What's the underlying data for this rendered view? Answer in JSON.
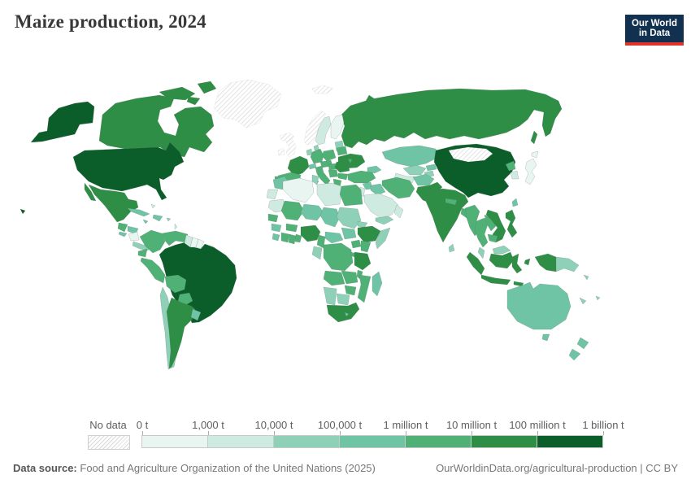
{
  "header": {
    "title": "Maize production, 2024",
    "logo": {
      "line1": "Our World",
      "line2": "in Data",
      "bg_color": "#12304f",
      "accent_color": "#e0342b"
    }
  },
  "legend": {
    "no_data_label": "No data",
    "tick_labels": [
      "0 t",
      "1,000 t",
      "10,000 t",
      "100,000 t",
      "1 million t",
      "10 million t",
      "100 million t",
      "1 billion t"
    ],
    "bin_colors": [
      "#e8f5f1",
      "#cfeae0",
      "#8fd1b8",
      "#6ec4a4",
      "#50b176",
      "#2f8e46",
      "#0b5e2a"
    ],
    "no_data_style": "diagonal-hatch"
  },
  "footer": {
    "source_label": "Data source:",
    "source_text": "Food and Agriculture Organization of the United Nations (2025)",
    "credit_text": "OurWorldinData.org/agricultural-production | CC BY"
  },
  "chart_data": {
    "type": "choropleth",
    "title": "Maize production, 2024",
    "unit": "tonnes",
    "bins": [
      {
        "bin": 1,
        "range": "0 t – 1,000 t",
        "color": "#e8f5f1"
      },
      {
        "bin": 2,
        "range": "1,000 t – 10,000 t",
        "color": "#cfeae0"
      },
      {
        "bin": 3,
        "range": "10,000 t – 100,000 t",
        "color": "#8fd1b8"
      },
      {
        "bin": 4,
        "range": "100,000 t – 1 million t",
        "color": "#6ec4a4"
      },
      {
        "bin": 5,
        "range": "1 million t – 10 million t",
        "color": "#50b176"
      },
      {
        "bin": 6,
        "range": "10 million t – 100 million t",
        "color": "#2f8e46"
      },
      {
        "bin": 7,
        "range": "100 million t – 1 billion t",
        "color": "#0b5e2a"
      }
    ],
    "no_data_regions_note": "0 = no data (hatched)",
    "regions": {
      "greenland": 0,
      "iceland": 0,
      "ireland": 0,
      "united-kingdom": 0,
      "norway": 0,
      "svalbard": 0,
      "mongolia": 0,
      "nicaragua": 1,
      "suriname": 1,
      "french-guiana": 1,
      "algeria": 1,
      "finland": 1,
      "japan": 1,
      "bahamas": 2,
      "lesser-antilles": 2,
      "guyana": 2,
      "sweden": 2,
      "south-korea": 2,
      "israel-jordan": 2,
      "saudi-arabia": 2,
      "libya": 2,
      "mauritania": 2,
      "western-sahara": 2,
      "turkmenistan": 2,
      "oman": 2,
      "costa-rica-panama": 3,
      "puerto-rico": 3,
      "trinidad-and-tobago": 3,
      "chile": 3,
      "baltic-states": 3,
      "denmark": 3,
      "netherlands-belgium": 3,
      "uzbekistan": 3,
      "tajikistan": 3,
      "sri-lanka": 3,
      "malaysia": 3,
      "papua-new-guinea": 3,
      "solomon-islands": 3,
      "fiji": 3,
      "new-caledonia": 3,
      "tunisia": 3,
      "sudan": 3,
      "eritrea": 3,
      "somalia": 3,
      "gabon-congo": 3,
      "botswana": 3,
      "namibia": 3,
      "yemen": 3,
      "el-salvador": 4,
      "honduras": 4,
      "cuba": 4,
      "jamaica": 4,
      "hispaniola": 4,
      "uruguay": 4,
      "switzerland": 4,
      "kazakhstan": 4,
      "kyrgyzstan": 4,
      "caucasus": 4,
      "syria": 4,
      "iraq": 4,
      "afghanistan": 4,
      "taiwan": 4,
      "morocco": 4,
      "niger": 4,
      "chad": 4,
      "guinea": 4,
      "sierra-leone-liberia": 4,
      "central-african-republic": 4,
      "south-sudan": 4,
      "lesotho": 4,
      "madagascar": 4,
      "australia": 4,
      "new-zealand": 4,
      "guatemala": 5,
      "colombia": 5,
      "venezuela": 5,
      "ecuador": 5,
      "peru": 5,
      "bolivia": 5,
      "paraguay": 5,
      "germany": 5,
      "poland": 5,
      "belarus": 5,
      "austria-czechia": 5,
      "spain": 5,
      "portugal": 5,
      "italy": 5,
      "hungary": 5,
      "balkans": 5,
      "bulgaria": 5,
      "greece": 5,
      "moldova": 5,
      "turkey": 5,
      "iran": 5,
      "egypt": 5,
      "mali": 5,
      "senegal": 5,
      "burkina-faso": 5,
      "ivory-coast": 5,
      "ghana": 5,
      "togo-benin": 5,
      "cameroon": 5,
      "uganda": 5,
      "kenya": 5,
      "rwanda-burundi": 5,
      "democratic-republic-of-congo": 5,
      "angola": 5,
      "zambia": 5,
      "malawi": 5,
      "mozambique": 5,
      "zimbabwe": 5,
      "north-korea": 5,
      "nepal": 5,
      "bangladesh": 5,
      "myanmar": 5,
      "thailand": 5,
      "laos": 5,
      "cambodia": 5,
      "canada": 6,
      "mexico": 6,
      "argentina": 6,
      "france": 6,
      "ukraine": 6,
      "romania": 6,
      "russia": 6,
      "pakistan": 6,
      "india": 6,
      "vietnam": 6,
      "indonesia": 6,
      "philippines": 6,
      "nigeria": 6,
      "ethiopia": 6,
      "tanzania": 6,
      "south-africa": 6,
      "united-states": 7,
      "china": 7,
      "brazil": 7
    }
  }
}
